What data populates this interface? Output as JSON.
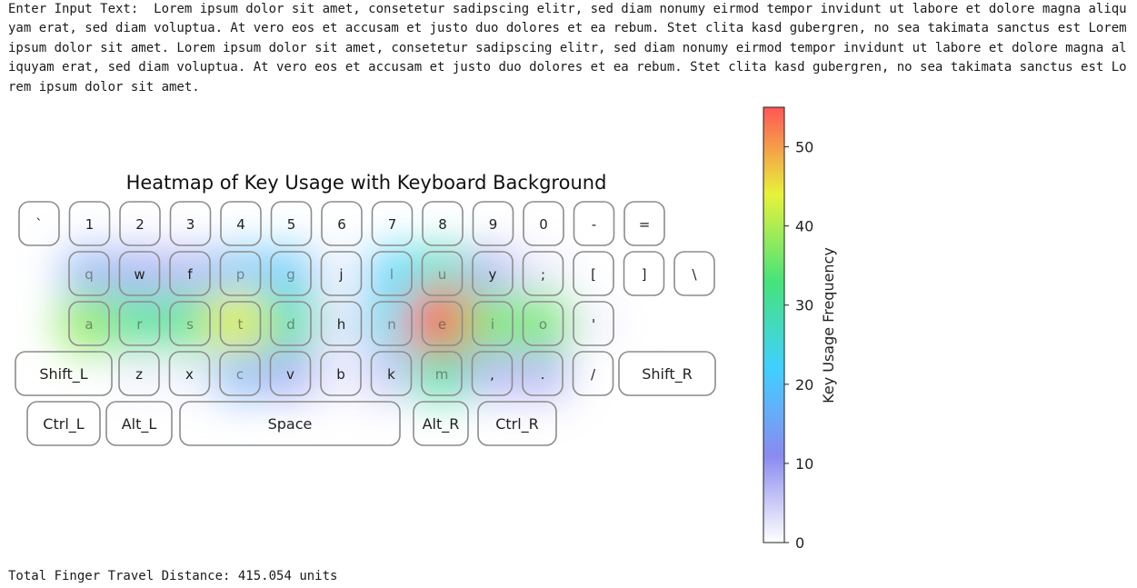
{
  "input": {
    "label": "Enter Input Text:",
    "text": "Lorem ipsum dolor sit amet, consetetur sadipscing elitr, sed diam nonumy eirmod tempor invidunt ut labore et dolore magna aliquyam erat, sed diam voluptua. At vero eos et accusam et justo duo dolores et ea rebum. Stet clita kasd gubergren, no sea takimata sanctus est Lorem ipsum dolor sit amet. Lorem ipsum dolor sit amet, consetetur sadipscing elitr, sed diam nonumy eirmod tempor invidunt ut labore et dolore magna aliquyam erat, sed diam voluptua. At vero eos et accusam et justo duo dolores et ea rebum. Stet clita kasd gubergren, no sea takimata sanctus est Lorem ipsum dolor sit amet."
  },
  "result": {
    "label": "Total Finger Travel Distance:",
    "value": "415.054",
    "unit": "units"
  },
  "chart_data": {
    "type": "heatmap",
    "title": "Heatmap of Key Usage with Keyboard Background",
    "colorbar_label": "Key Usage Frequency",
    "colorbar_ticks": [
      0,
      10,
      20,
      30,
      40,
      50
    ],
    "vmin": 0,
    "vmax": 55,
    "colormap_stops": [
      "#ffffff",
      "#8a8af0",
      "#3fd0ff",
      "#46e37a",
      "#e8f23a",
      "#ff5656"
    ],
    "keyboard_rows": [
      [
        "`",
        "1",
        "2",
        "3",
        "4",
        "5",
        "6",
        "7",
        "8",
        "9",
        "0",
        "-",
        "="
      ],
      [
        "q",
        "w",
        "f",
        "p",
        "g",
        "j",
        "l",
        "u",
        "y",
        ";",
        "[",
        "]",
        "\\"
      ],
      [
        "a",
        "r",
        "s",
        "t",
        "d",
        "h",
        "n",
        "e",
        "i",
        "o",
        "'"
      ],
      [
        "Shift_L",
        "z",
        "x",
        "c",
        "v",
        "b",
        "k",
        "m",
        ",",
        ".",
        "/",
        "Shift_R"
      ],
      [
        "Ctrl_L",
        "Alt_L",
        "Space",
        "Alt_R",
        "Ctrl_R"
      ]
    ],
    "key_usage": {
      "e": 54,
      "t": 44,
      "a": 38,
      "o": 36,
      "i": 36,
      "s": 32,
      "r": 31,
      "d": 30,
      "u": 28,
      "m": 30,
      "l": 22,
      "n": 24,
      "g": 20,
      "p": 18,
      "c": 16,
      "q": 14,
      "w": 12,
      "f": 10,
      "v": 12,
      "y": 10,
      "k": 8,
      ",": 10,
      ".": 10,
      "h": 4,
      "b": 3,
      "j": 2,
      "z": 2,
      "x": 2,
      "'": 2,
      ";": 3
    }
  }
}
